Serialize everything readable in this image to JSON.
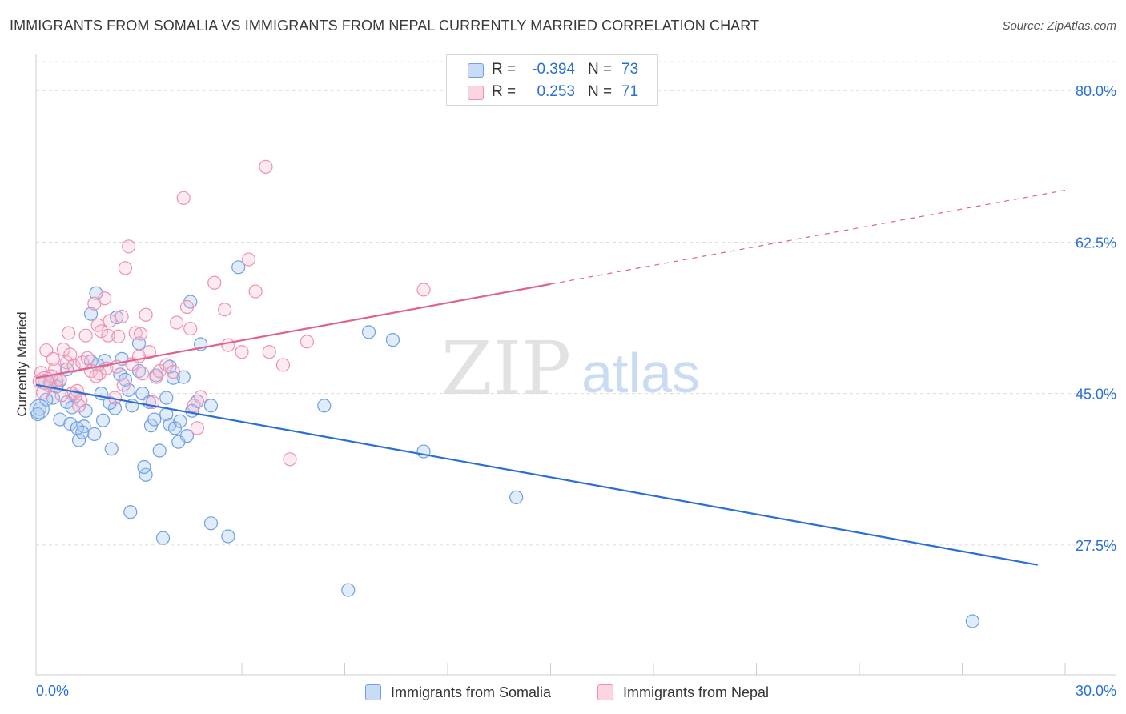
{
  "header": {
    "title": "IMMIGRANTS FROM SOMALIA VS IMMIGRANTS FROM NEPAL CURRENTLY MARRIED CORRELATION CHART",
    "source": "Source: ZipAtlas.com"
  },
  "watermark": {
    "zip": "ZIP",
    "atlas": "atlas"
  },
  "stats": {
    "rows": [
      {
        "r_label": "R =",
        "r_value": "-0.394",
        "n_label": "N =",
        "n_value": "73",
        "color": "#aecbf2"
      },
      {
        "r_label": "R =",
        "r_value": "0.253",
        "n_label": "N =",
        "n_value": "71",
        "color": "#f7bdd0"
      }
    ]
  },
  "legend": {
    "items": [
      {
        "label": "Immigrants from Somalia",
        "color": "#aecbf2"
      },
      {
        "label": "Immigrants from Nepal",
        "color": "#f7bdd0"
      }
    ]
  },
  "chart_data": {
    "type": "scatter",
    "title": "IMMIGRANTS FROM SOMALIA VS IMMIGRANTS FROM NEPAL CURRENTLY MARRIED CORRELATION CHART",
    "xlabel": "",
    "ylabel": "Currently Married",
    "xlim": [
      0,
      30
    ],
    "ylim": [
      12.5,
      84
    ],
    "x_tick_labels": [
      "0.0%",
      "30.0%"
    ],
    "y_ticks": [
      27.5,
      45.0,
      62.5,
      80.0
    ],
    "y_tick_labels": [
      "27.5%",
      "45.0%",
      "62.5%",
      "80.0%"
    ],
    "grid": true,
    "legend_position": "bottom-center",
    "colors": {
      "somalia": "#2a6fd6",
      "nepal": "#e0628e",
      "axis_text": "#2a6fd6"
    },
    "series": [
      {
        "name": "Immigrants from Somalia",
        "color": "#2a6fd6",
        "trend": {
          "x": [
            0,
            29.2
          ],
          "y": [
            46.0,
            25.2
          ],
          "solid_until": 29.2
        },
        "points": [
          [
            0.1,
            43.2
          ],
          [
            0.25,
            46.5
          ],
          [
            0.4,
            46.2
          ],
          [
            0.5,
            44.5
          ],
          [
            0.7,
            46.5
          ],
          [
            0.9,
            44.0
          ],
          [
            0.7,
            42.0
          ],
          [
            0.9,
            47.8
          ],
          [
            1.05,
            43.4
          ],
          [
            1.0,
            41.5
          ],
          [
            1.2,
            41.0
          ],
          [
            1.25,
            39.6
          ],
          [
            1.4,
            41.2
          ],
          [
            1.35,
            40.5
          ],
          [
            1.45,
            43.0
          ],
          [
            1.6,
            48.7
          ],
          [
            1.6,
            54.2
          ],
          [
            1.75,
            56.6
          ],
          [
            1.7,
            40.3
          ],
          [
            1.9,
            45.0
          ],
          [
            1.95,
            41.9
          ],
          [
            2.0,
            48.8
          ],
          [
            2.2,
            38.6
          ],
          [
            2.3,
            43.3
          ],
          [
            2.35,
            53.8
          ],
          [
            2.45,
            47.2
          ],
          [
            2.5,
            49.0
          ],
          [
            2.7,
            45.4
          ],
          [
            2.75,
            31.3
          ],
          [
            2.8,
            43.6
          ],
          [
            3.0,
            50.8
          ],
          [
            3.0,
            47.6
          ],
          [
            3.1,
            45.0
          ],
          [
            3.2,
            35.6
          ],
          [
            3.15,
            36.5
          ],
          [
            3.3,
            44.0
          ],
          [
            3.35,
            41.3
          ],
          [
            3.5,
            47.1
          ],
          [
            3.6,
            38.4
          ],
          [
            3.7,
            28.3
          ],
          [
            3.8,
            44.5
          ],
          [
            3.8,
            42.6
          ],
          [
            3.9,
            41.4
          ],
          [
            3.9,
            48.1
          ],
          [
            4.0,
            46.8
          ],
          [
            4.05,
            41.0
          ],
          [
            4.15,
            39.4
          ],
          [
            4.2,
            41.8
          ],
          [
            4.3,
            46.9
          ],
          [
            4.4,
            40.1
          ],
          [
            4.5,
            55.6
          ],
          [
            4.7,
            44.1
          ],
          [
            4.8,
            50.7
          ],
          [
            5.1,
            30.0
          ],
          [
            5.1,
            43.6
          ],
          [
            5.6,
            28.5
          ],
          [
            5.9,
            59.6
          ],
          [
            8.4,
            43.6
          ],
          [
            9.1,
            22.3
          ],
          [
            9.7,
            52.1
          ],
          [
            10.4,
            51.2
          ],
          [
            11.3,
            38.3
          ],
          [
            14.0,
            33.0
          ],
          [
            27.3,
            18.7
          ],
          [
            0.3,
            44.3
          ],
          [
            0.6,
            45.8
          ],
          [
            1.15,
            44.7
          ],
          [
            1.8,
            48.3
          ],
          [
            2.6,
            46.6
          ],
          [
            3.45,
            42.0
          ],
          [
            0.05,
            42.6
          ],
          [
            2.15,
            43.9
          ],
          [
            4.55,
            43.0
          ]
        ]
      },
      {
        "name": "Immigrants from Nepal",
        "color": "#e0628e",
        "trend": {
          "x": [
            0,
            30.0
          ],
          "y": [
            46.8,
            68.5
          ],
          "solid_until": 15.0
        },
        "points": [
          [
            0.1,
            46.4
          ],
          [
            0.2,
            45.1
          ],
          [
            0.3,
            50.0
          ],
          [
            0.4,
            45.9
          ],
          [
            0.5,
            49.0
          ],
          [
            0.55,
            47.8
          ],
          [
            0.6,
            46.5
          ],
          [
            0.7,
            46.6
          ],
          [
            0.8,
            50.1
          ],
          [
            0.9,
            48.6
          ],
          [
            1.0,
            49.5
          ],
          [
            1.05,
            45.0
          ],
          [
            1.1,
            48.2
          ],
          [
            1.2,
            45.3
          ],
          [
            1.3,
            44.2
          ],
          [
            1.35,
            48.6
          ],
          [
            1.45,
            51.7
          ],
          [
            1.5,
            49.1
          ],
          [
            1.6,
            47.6
          ],
          [
            1.7,
            55.4
          ],
          [
            1.8,
            52.9
          ],
          [
            1.85,
            47.3
          ],
          [
            1.9,
            52.2
          ],
          [
            2.0,
            56.0
          ],
          [
            2.05,
            47.9
          ],
          [
            2.1,
            51.7
          ],
          [
            2.15,
            53.4
          ],
          [
            2.3,
            44.5
          ],
          [
            2.35,
            48.1
          ],
          [
            2.4,
            51.6
          ],
          [
            2.5,
            53.9
          ],
          [
            2.6,
            59.5
          ],
          [
            2.7,
            62.0
          ],
          [
            2.8,
            48.4
          ],
          [
            2.9,
            52.0
          ],
          [
            3.0,
            49.3
          ],
          [
            3.1,
            47.3
          ],
          [
            3.2,
            54.1
          ],
          [
            3.3,
            49.8
          ],
          [
            3.4,
            44.0
          ],
          [
            3.5,
            46.9
          ],
          [
            3.6,
            47.6
          ],
          [
            3.8,
            48.3
          ],
          [
            4.0,
            47.5
          ],
          [
            4.1,
            53.2
          ],
          [
            4.3,
            67.6
          ],
          [
            4.4,
            55.0
          ],
          [
            4.5,
            52.5
          ],
          [
            4.6,
            43.6
          ],
          [
            4.7,
            41.0
          ],
          [
            4.8,
            44.6
          ],
          [
            5.2,
            57.8
          ],
          [
            5.5,
            54.7
          ],
          [
            5.6,
            50.6
          ],
          [
            6.0,
            49.8
          ],
          [
            6.2,
            60.5
          ],
          [
            6.4,
            56.8
          ],
          [
            6.7,
            71.2
          ],
          [
            6.8,
            49.8
          ],
          [
            7.2,
            48.3
          ],
          [
            7.4,
            37.4
          ],
          [
            7.9,
            51.0
          ],
          [
            11.3,
            57.0
          ],
          [
            1.25,
            43.6
          ],
          [
            0.45,
            47.0
          ],
          [
            0.75,
            44.8
          ],
          [
            2.55,
            46.0
          ],
          [
            3.05,
            51.9
          ],
          [
            0.95,
            52.0
          ],
          [
            1.75,
            47.0
          ],
          [
            0.15,
            47.4
          ]
        ]
      }
    ]
  }
}
